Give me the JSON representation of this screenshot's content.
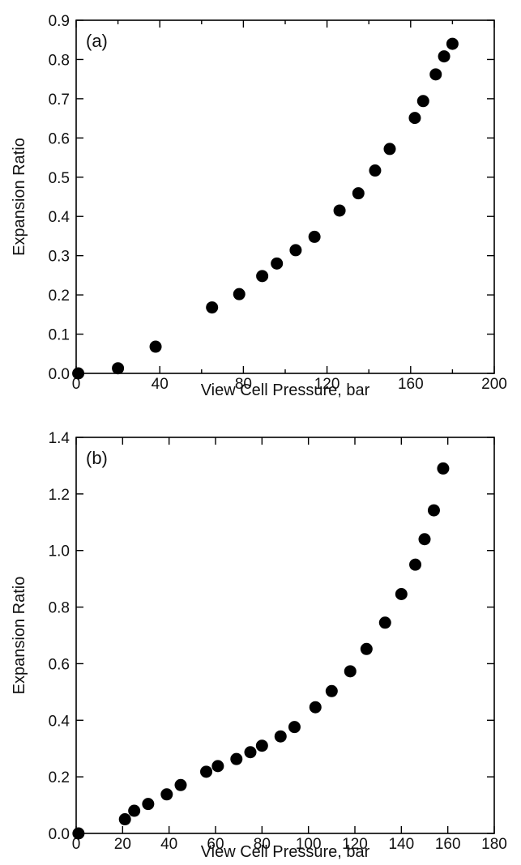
{
  "chart_data": [
    {
      "type": "scatter",
      "panel_label": "(a)",
      "xlabel": "View Cell Pressure, bar",
      "ylabel": "Expansion Ratio",
      "xlim": [
        0,
        200
      ],
      "ylim": [
        0,
        0.9
      ],
      "xticks": [
        0,
        40,
        80,
        120,
        160,
        200
      ],
      "xtick_labels": [
        "0",
        "40",
        "80",
        "120",
        "160",
        "200"
      ],
      "yticks": [
        0,
        0.1,
        0.2,
        0.3,
        0.4,
        0.5,
        0.6,
        0.7,
        0.8,
        0.9
      ],
      "ytick_labels": [
        "0.0",
        "0.1",
        "0.2",
        "0.3",
        "0.4",
        "0.5",
        "0.6",
        "0.7",
        "0.8",
        "0.9"
      ],
      "minor_xticks": [
        20,
        60,
        100,
        140,
        180
      ],
      "grid": false,
      "color": "#000000",
      "series": [
        {
          "x": [
            1,
            20,
            38,
            65,
            78,
            89,
            96,
            105,
            114,
            126,
            135,
            143,
            150,
            162,
            166,
            172,
            176,
            180
          ],
          "y": [
            0.0,
            0.013,
            0.068,
            0.168,
            0.202,
            0.248,
            0.28,
            0.314,
            0.348,
            0.415,
            0.459,
            0.517,
            0.572,
            0.651,
            0.694,
            0.762,
            0.808,
            0.84
          ]
        }
      ]
    },
    {
      "type": "scatter",
      "panel_label": "(b)",
      "xlabel": "View Cell Pressure, bar",
      "ylabel": "Expansion Ratio",
      "xlim": [
        0,
        180
      ],
      "ylim": [
        0,
        1.4
      ],
      "xticks": [
        0,
        20,
        40,
        60,
        80,
        100,
        120,
        140,
        160,
        180
      ],
      "xtick_labels": [
        "0",
        "20",
        "40",
        "60",
        "80",
        "100",
        "120",
        "140",
        "160",
        "180"
      ],
      "yticks": [
        0,
        0.2,
        0.4,
        0.6,
        0.8,
        1.0,
        1.2,
        1.4
      ],
      "ytick_labels": [
        "0.0",
        "0.2",
        "0.4",
        "0.6",
        "0.8",
        "1.0",
        "1.2",
        "1.4"
      ],
      "minor_xticks": [],
      "grid": false,
      "color": "#000000",
      "series": [
        {
          "x": [
            1,
            21,
            25,
            31,
            39,
            45,
            56,
            61,
            69,
            75,
            80,
            88,
            94,
            103,
            110,
            118,
            125,
            133,
            140,
            146,
            150,
            154,
            158
          ],
          "y": [
            0.0,
            0.05,
            0.08,
            0.104,
            0.138,
            0.171,
            0.218,
            0.238,
            0.263,
            0.287,
            0.31,
            0.343,
            0.376,
            0.446,
            0.503,
            0.573,
            0.652,
            0.745,
            0.846,
            0.95,
            1.04,
            1.142,
            1.29
          ]
        }
      ]
    }
  ]
}
